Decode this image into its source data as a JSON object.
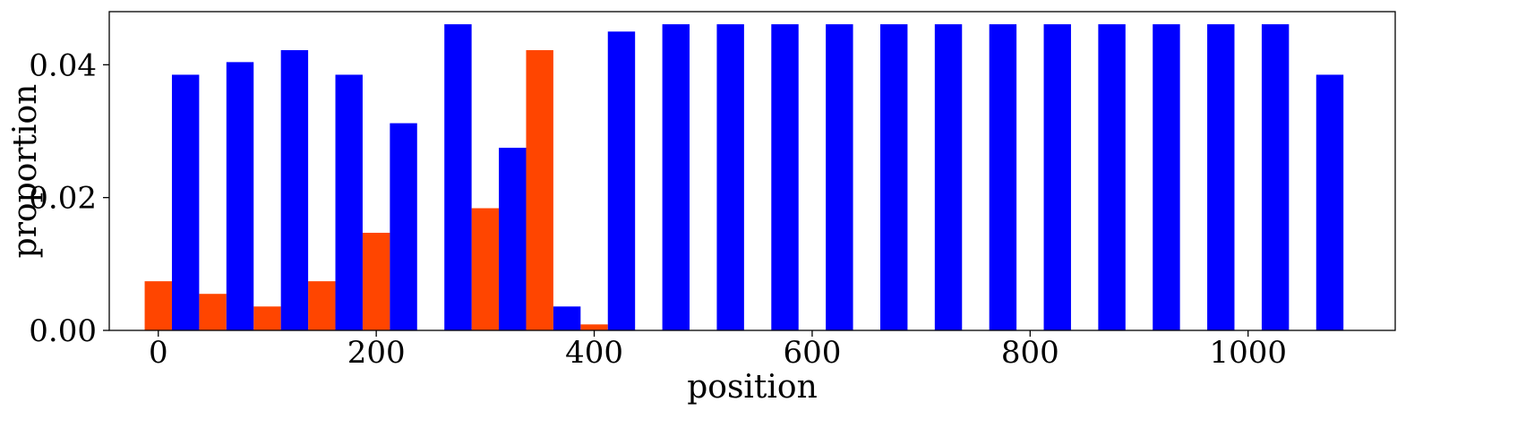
{
  "chart_data": {
    "type": "bar",
    "title": "",
    "xlabel": "position",
    "ylabel": "proportion",
    "xlim": [
      -45,
      1135
    ],
    "ylim": [
      0,
      0.048
    ],
    "bar_width": 25,
    "x_ticks": [
      0,
      200,
      400,
      600,
      800,
      1000
    ],
    "x_tick_labels": [
      "0",
      "200",
      "400",
      "600",
      "800",
      "1000"
    ],
    "y_ticks": [
      0.0,
      0.02,
      0.04
    ],
    "y_tick_labels": [
      "0.00",
      "0.02",
      "0.04"
    ],
    "grid": false,
    "series": [
      {
        "color": "#ff4500",
        "x": [
          0,
          50,
          100,
          150,
          200,
          300,
          350,
          400
        ],
        "values": [
          0.0074,
          0.0055,
          0.0036,
          0.0074,
          0.0147,
          0.0184,
          0.0422,
          0.0009
        ]
      },
      {
        "color": "#0000ff",
        "x": [
          25,
          75,
          125,
          175,
          225,
          275,
          325,
          375,
          425,
          475,
          525,
          575,
          625,
          675,
          725,
          775,
          825,
          875,
          925,
          975,
          1025,
          1075
        ],
        "values": [
          0.0385,
          0.0404,
          0.0422,
          0.0385,
          0.0312,
          0.0461,
          0.0275,
          0.0036,
          0.045,
          0.0461,
          0.0461,
          0.0461,
          0.0461,
          0.0461,
          0.0461,
          0.0461,
          0.0461,
          0.0461,
          0.0461,
          0.0461,
          0.0461,
          0.0385
        ]
      }
    ]
  }
}
